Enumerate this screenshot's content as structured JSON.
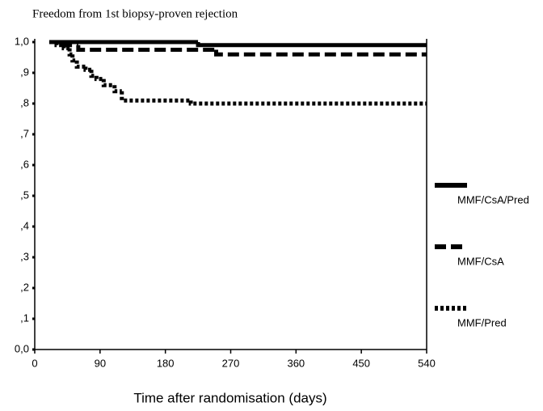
{
  "chart_data": {
    "type": "step",
    "title": "Freedom from 1st biopsy-proven rejection",
    "x_label": "Time after randomisation (days)",
    "xlim": [
      0,
      540
    ],
    "xticks": [
      0,
      90,
      180,
      270,
      360,
      450,
      540
    ],
    "ylim": [
      0,
      1
    ],
    "yticks": [
      {
        "value": 0,
        "label": "0,0"
      },
      {
        "value": 0.1,
        "label": ",1"
      },
      {
        "value": 0.2,
        "label": ",2"
      },
      {
        "value": 0.3,
        "label": ",3"
      },
      {
        "value": 0.4,
        "label": ",4"
      },
      {
        "value": 0.5,
        "label": ",5"
      },
      {
        "value": 0.6,
        "label": ",6"
      },
      {
        "value": 0.7,
        "label": ",7"
      },
      {
        "value": 0.8,
        "label": ",8"
      },
      {
        "value": 0.9,
        "label": ",9"
      },
      {
        "value": 1,
        "label": "1,0"
      }
    ],
    "legend": "right",
    "series": [
      {
        "name": "MMF/CsA/Pred",
        "color": "#000000",
        "style": "solid",
        "x": [
          20,
          225,
          540
        ],
        "values": [
          1.0,
          0.99,
          0.99
        ]
      },
      {
        "name": "MMF/CsA",
        "color": "#000000",
        "style": "dashed",
        "x": [
          20,
          40,
          60,
          250,
          540
        ],
        "values": [
          1.0,
          0.99,
          0.975,
          0.96,
          0.96
        ]
      },
      {
        "name": "MMF/Pred",
        "color": "#000000",
        "style": "dotted",
        "x": [
          20,
          30,
          40,
          48,
          52,
          58,
          70,
          78,
          85,
          95,
          110,
          120,
          215,
          540
        ],
        "values": [
          1.0,
          0.99,
          0.98,
          0.96,
          0.94,
          0.92,
          0.91,
          0.89,
          0.88,
          0.86,
          0.84,
          0.81,
          0.8,
          0.8
        ]
      }
    ]
  }
}
